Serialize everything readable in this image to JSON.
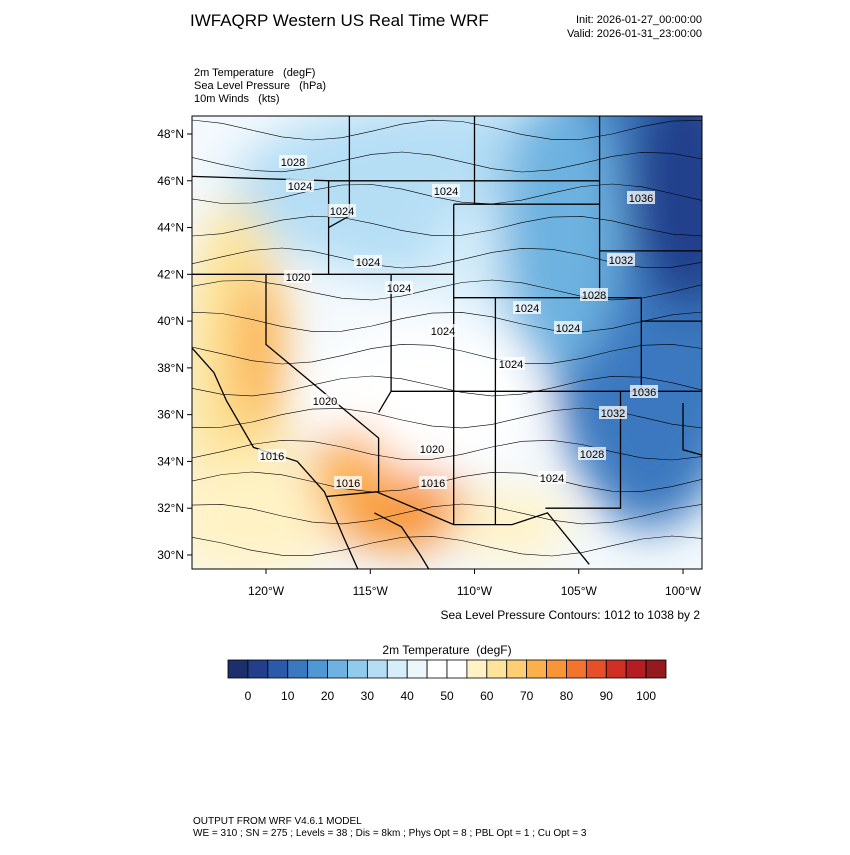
{
  "header": {
    "title": "IWFAQRP Western US Real Time WRF",
    "init": "Init: 2026-01-27_00:00:00",
    "valid": "Valid: 2026-01-31_23:00:00",
    "fields": [
      "2m Temperature   (degF)",
      "Sea Level Pressure   (hPa)",
      "10m Winds   (kts)"
    ]
  },
  "map": {
    "lat_ticks": [
      {
        "value": 30,
        "label": "30°N"
      },
      {
        "value": 32,
        "label": "32°N"
      },
      {
        "value": 34,
        "label": "34°N"
      },
      {
        "value": 36,
        "label": "36°N"
      },
      {
        "value": 38,
        "label": "38°N"
      },
      {
        "value": 40,
        "label": "40°N"
      },
      {
        "value": 42,
        "label": "42°N"
      },
      {
        "value": 44,
        "label": "44°N"
      },
      {
        "value": 46,
        "label": "46°N"
      },
      {
        "value": 48,
        "label": "48°N"
      }
    ],
    "lon_ticks": [
      {
        "value": -120,
        "label": "120°W"
      },
      {
        "value": -115,
        "label": "115°W"
      },
      {
        "value": -110,
        "label": "110°W"
      },
      {
        "value": -105,
        "label": "105°W"
      },
      {
        "value": -100,
        "label": "100°W"
      }
    ],
    "lat_range": [
      29.4,
      48.77
    ],
    "lon_range": [
      -123.55,
      -99.09
    ],
    "contour_labels": [
      "1028",
      "1024",
      "1024",
      "1024",
      "1036",
      "1032",
      "1020",
      "1024",
      "1024",
      "1028",
      "1024",
      "1024",
      "1024",
      "1024",
      "1036",
      "1032",
      "1020",
      "1020",
      "1028",
      "1016",
      "1016",
      "1016",
      "1024"
    ],
    "contour_note": "Sea Level Pressure Contours: 1012 to 1038 by 2"
  },
  "colorbar": {
    "title": "2m Temperature  (degF)",
    "range": [
      -5,
      105
    ],
    "ticks": [
      0,
      10,
      20,
      30,
      40,
      50,
      60,
      70,
      80,
      90,
      100
    ],
    "colors": [
      "#1c2f6b",
      "#233f8c",
      "#2c5aa8",
      "#3a78bf",
      "#4f98d3",
      "#6db2e0",
      "#90cbed",
      "#b5def5",
      "#d6eefa",
      "#ecf7fc",
      "#ffffff",
      "#ffffff",
      "#fff3c6",
      "#fde49a",
      "#fdcf72",
      "#fbb04c",
      "#f89538",
      "#f3742d",
      "#e55028",
      "#d03023",
      "#b61d22",
      "#951a1e"
    ]
  },
  "footer": {
    "line1": "OUTPUT FROM WRF V4.6.1 MODEL",
    "line2": "WE = 310 ; SN = 275 ; Levels = 38 ; Dis = 8km ; Phys Opt = 8 ; PBL Opt = 1 ; Cu Opt = 3"
  }
}
